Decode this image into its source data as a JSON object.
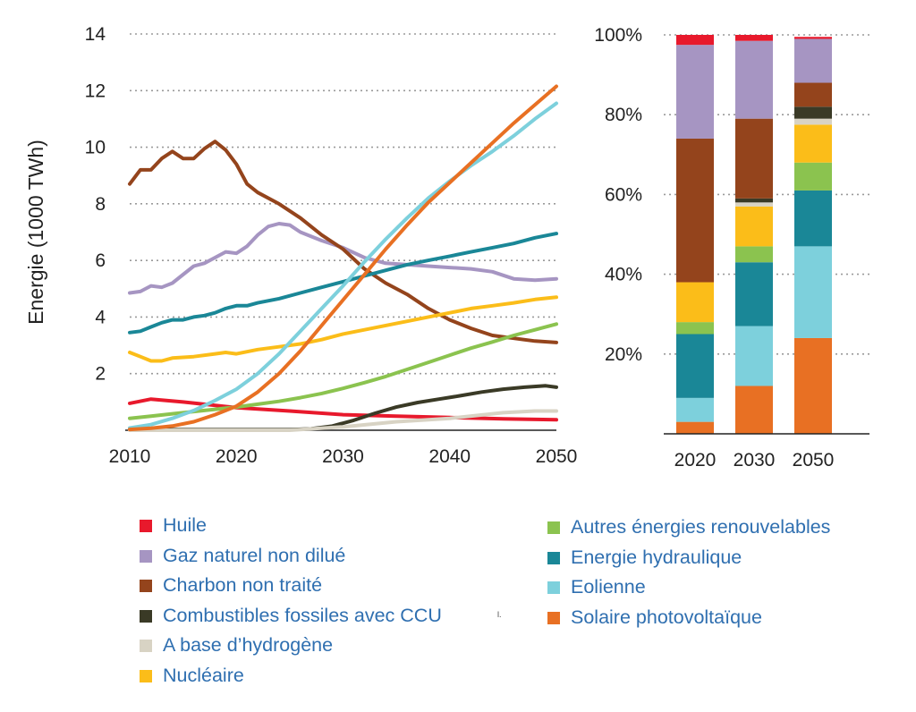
{
  "colors": {
    "Huile": "#e8192c",
    "Gaz naturel non dilué": "#a695c2",
    "Charbon non traité": "#94441c",
    "Combustibles fossiles avec CCU": "#3a3a26",
    "A base d'hydrogène": "#d8d3c4",
    "Nucléaire": "#fbbd19",
    "Autres énergies renouvelables": "#8bc34f",
    "Energie hydraulique": "#1a8797",
    "Eolienne": "#7dd0dc",
    "Solaire photovoltaïque": "#e87023"
  },
  "chart_data": [
    {
      "type": "line",
      "ylabel": "Energie (1000 TWh)",
      "xlabel": "",
      "xlim": [
        2010,
        2050
      ],
      "ylim": [
        0,
        14
      ],
      "x_ticks": [
        "2010",
        "2020",
        "2030",
        "2040",
        "2050"
      ],
      "y_ticks": [
        "2",
        "4",
        "6",
        "8",
        "10",
        "12",
        "14"
      ],
      "grid": "horizontal dotted",
      "series": [
        {
          "name": "Huile",
          "points": [
            [
              2010,
              0.95
            ],
            [
              2012,
              1.1
            ],
            [
              2015,
              1.0
            ],
            [
              2020,
              0.8
            ],
            [
              2025,
              0.68
            ],
            [
              2030,
              0.55
            ],
            [
              2035,
              0.5
            ],
            [
              2040,
              0.45
            ],
            [
              2045,
              0.4
            ],
            [
              2050,
              0.37
            ]
          ]
        },
        {
          "name": "Gaz naturel non dilué",
          "points": [
            [
              2010,
              4.85
            ],
            [
              2011,
              4.9
            ],
            [
              2012,
              5.1
            ],
            [
              2013,
              5.05
            ],
            [
              2014,
              5.2
            ],
            [
              2015,
              5.5
            ],
            [
              2016,
              5.8
            ],
            [
              2017,
              5.9
            ],
            [
              2018,
              6.1
            ],
            [
              2019,
              6.3
            ],
            [
              2020,
              6.25
            ],
            [
              2021,
              6.5
            ],
            [
              2022,
              6.9
            ],
            [
              2023,
              7.2
            ],
            [
              2024,
              7.3
            ],
            [
              2025,
              7.25
            ],
            [
              2026,
              7.0
            ],
            [
              2028,
              6.7
            ],
            [
              2030,
              6.45
            ],
            [
              2032,
              6.1
            ],
            [
              2034,
              5.9
            ],
            [
              2036,
              5.85
            ],
            [
              2038,
              5.8
            ],
            [
              2040,
              5.75
            ],
            [
              2042,
              5.7
            ],
            [
              2044,
              5.6
            ],
            [
              2046,
              5.35
            ],
            [
              2048,
              5.3
            ],
            [
              2050,
              5.35
            ]
          ]
        },
        {
          "name": "Charbon non traité",
          "points": [
            [
              2010,
              8.7
            ],
            [
              2011,
              9.2
            ],
            [
              2012,
              9.2
            ],
            [
              2013,
              9.6
            ],
            [
              2014,
              9.85
            ],
            [
              2015,
              9.6
            ],
            [
              2016,
              9.6
            ],
            [
              2017,
              9.95
            ],
            [
              2018,
              10.2
            ],
            [
              2019,
              9.9
            ],
            [
              2020,
              9.4
            ],
            [
              2021,
              8.7
            ],
            [
              2022,
              8.4
            ],
            [
              2024,
              8.0
            ],
            [
              2026,
              7.5
            ],
            [
              2028,
              6.9
            ],
            [
              2030,
              6.4
            ],
            [
              2032,
              5.7
            ],
            [
              2034,
              5.2
            ],
            [
              2036,
              4.8
            ],
            [
              2038,
              4.3
            ],
            [
              2040,
              3.9
            ],
            [
              2042,
              3.6
            ],
            [
              2044,
              3.35
            ],
            [
              2046,
              3.25
            ],
            [
              2048,
              3.15
            ],
            [
              2050,
              3.1
            ]
          ]
        },
        {
          "name": "Combustibles fossiles avec CCU",
          "points": [
            [
              2010,
              0.02
            ],
            [
              2025,
              0.02
            ],
            [
              2027,
              0.05
            ],
            [
              2029,
              0.15
            ],
            [
              2031,
              0.35
            ],
            [
              2033,
              0.6
            ],
            [
              2035,
              0.82
            ],
            [
              2037,
              0.98
            ],
            [
              2039,
              1.1
            ],
            [
              2041,
              1.22
            ],
            [
              2043,
              1.35
            ],
            [
              2045,
              1.45
            ],
            [
              2047,
              1.52
            ],
            [
              2049,
              1.57
            ],
            [
              2050,
              1.52
            ]
          ]
        },
        {
          "name": "A base d'hydrogène",
          "points": [
            [
              2010,
              0.0
            ],
            [
              2025,
              0.0
            ],
            [
              2030,
              0.12
            ],
            [
              2035,
              0.3
            ],
            [
              2040,
              0.42
            ],
            [
              2045,
              0.62
            ],
            [
              2048,
              0.68
            ],
            [
              2050,
              0.68
            ]
          ]
        },
        {
          "name": "Nucléaire",
          "points": [
            [
              2010,
              2.75
            ],
            [
              2011,
              2.6
            ],
            [
              2012,
              2.45
            ],
            [
              2013,
              2.45
            ],
            [
              2014,
              2.55
            ],
            [
              2016,
              2.6
            ],
            [
              2018,
              2.7
            ],
            [
              2019,
              2.75
            ],
            [
              2020,
              2.7
            ],
            [
              2022,
              2.85
            ],
            [
              2024,
              2.95
            ],
            [
              2026,
              3.05
            ],
            [
              2028,
              3.2
            ],
            [
              2030,
              3.4
            ],
            [
              2032,
              3.55
            ],
            [
              2034,
              3.7
            ],
            [
              2036,
              3.85
            ],
            [
              2038,
              4.0
            ],
            [
              2040,
              4.15
            ],
            [
              2042,
              4.3
            ],
            [
              2044,
              4.4
            ],
            [
              2046,
              4.5
            ],
            [
              2048,
              4.62
            ],
            [
              2050,
              4.7
            ]
          ]
        },
        {
          "name": "Autres énergies renouvelables",
          "points": [
            [
              2010,
              0.42
            ],
            [
              2012,
              0.5
            ],
            [
              2014,
              0.58
            ],
            [
              2016,
              0.66
            ],
            [
              2018,
              0.74
            ],
            [
              2020,
              0.82
            ],
            [
              2022,
              0.92
            ],
            [
              2024,
              1.02
            ],
            [
              2026,
              1.15
            ],
            [
              2028,
              1.3
            ],
            [
              2030,
              1.48
            ],
            [
              2032,
              1.68
            ],
            [
              2034,
              1.9
            ],
            [
              2036,
              2.15
            ],
            [
              2038,
              2.4
            ],
            [
              2040,
              2.65
            ],
            [
              2042,
              2.9
            ],
            [
              2044,
              3.12
            ],
            [
              2046,
              3.35
            ],
            [
              2048,
              3.55
            ],
            [
              2050,
              3.75
            ]
          ]
        },
        {
          "name": "Energie hydraulique",
          "points": [
            [
              2010,
              3.45
            ],
            [
              2011,
              3.5
            ],
            [
              2012,
              3.65
            ],
            [
              2013,
              3.8
            ],
            [
              2014,
              3.9
            ],
            [
              2015,
              3.9
            ],
            [
              2016,
              4.0
            ],
            [
              2017,
              4.05
            ],
            [
              2018,
              4.15
            ],
            [
              2019,
              4.3
            ],
            [
              2020,
              4.4
            ],
            [
              2021,
              4.4
            ],
            [
              2022,
              4.5
            ],
            [
              2024,
              4.65
            ],
            [
              2026,
              4.85
            ],
            [
              2028,
              5.05
            ],
            [
              2030,
              5.25
            ],
            [
              2032,
              5.45
            ],
            [
              2034,
              5.65
            ],
            [
              2036,
              5.85
            ],
            [
              2038,
              6.0
            ],
            [
              2040,
              6.15
            ],
            [
              2042,
              6.3
            ],
            [
              2044,
              6.45
            ],
            [
              2046,
              6.6
            ],
            [
              2048,
              6.8
            ],
            [
              2050,
              6.95
            ]
          ]
        },
        {
          "name": "Eolienne",
          "points": [
            [
              2010,
              0.08
            ],
            [
              2012,
              0.2
            ],
            [
              2014,
              0.42
            ],
            [
              2016,
              0.7
            ],
            [
              2018,
              1.05
            ],
            [
              2020,
              1.45
            ],
            [
              2022,
              2.0
            ],
            [
              2024,
              2.7
            ],
            [
              2026,
              3.5
            ],
            [
              2028,
              4.3
            ],
            [
              2030,
              5.1
            ],
            [
              2032,
              5.95
            ],
            [
              2034,
              6.75
            ],
            [
              2036,
              7.5
            ],
            [
              2038,
              8.2
            ],
            [
              2040,
              8.8
            ],
            [
              2042,
              9.35
            ],
            [
              2044,
              9.85
            ],
            [
              2046,
              10.4
            ],
            [
              2048,
              11.0
            ],
            [
              2050,
              11.55
            ]
          ]
        },
        {
          "name": "Solaire photovoltaïque",
          "points": [
            [
              2010,
              0.03
            ],
            [
              2012,
              0.07
            ],
            [
              2014,
              0.15
            ],
            [
              2016,
              0.3
            ],
            [
              2018,
              0.55
            ],
            [
              2020,
              0.85
            ],
            [
              2022,
              1.35
            ],
            [
              2024,
              2.0
            ],
            [
              2026,
              2.8
            ],
            [
              2028,
              3.7
            ],
            [
              2030,
              4.6
            ],
            [
              2032,
              5.5
            ],
            [
              2034,
              6.4
            ],
            [
              2036,
              7.25
            ],
            [
              2038,
              8.05
            ],
            [
              2040,
              8.75
            ],
            [
              2042,
              9.45
            ],
            [
              2044,
              10.15
            ],
            [
              2046,
              10.85
            ],
            [
              2048,
              11.5
            ],
            [
              2050,
              12.15
            ]
          ]
        }
      ]
    },
    {
      "type": "bar",
      "stacked": true,
      "categories": [
        "2020",
        "2030",
        "2050"
      ],
      "ylim": [
        0,
        100
      ],
      "y_ticks": [
        "20%",
        "40%",
        "60%",
        "80%",
        "100%"
      ],
      "grid": "horizontal dotted",
      "series": [
        {
          "name": "Solaire photovoltaïque",
          "values": [
            3,
            12,
            24
          ]
        },
        {
          "name": "Eolienne",
          "values": [
            6,
            15,
            23
          ]
        },
        {
          "name": "Energie hydraulique",
          "values": [
            16,
            16,
            14
          ]
        },
        {
          "name": "Autres énergies renouvelables",
          "values": [
            3,
            4,
            7
          ]
        },
        {
          "name": "Nucléaire",
          "values": [
            10,
            10,
            9.5
          ]
        },
        {
          "name": "A base d'hydrogène",
          "values": [
            0,
            1,
            1.5
          ]
        },
        {
          "name": "Combustibles fossiles avec CCU",
          "values": [
            0,
            1,
            3
          ]
        },
        {
          "name": "Charbon non traité",
          "values": [
            36,
            20,
            6
          ]
        },
        {
          "name": "Gaz naturel non dilué",
          "values": [
            23.5,
            19.5,
            11
          ]
        },
        {
          "name": "Huile",
          "values": [
            2.5,
            1.5,
            0.5
          ]
        }
      ]
    }
  ],
  "legend": {
    "left": [
      "Huile",
      "Gaz naturel non dilué",
      "Charbon non traité",
      "Combustibles fossiles avec CCU",
      "A base d’hydrogène",
      "Nucléaire"
    ],
    "right": [
      "Autres énergies renouvelables",
      "Energie hydraulique",
      "Eolienne",
      "Solaire photovoltaïque"
    ],
    "note": "l."
  }
}
